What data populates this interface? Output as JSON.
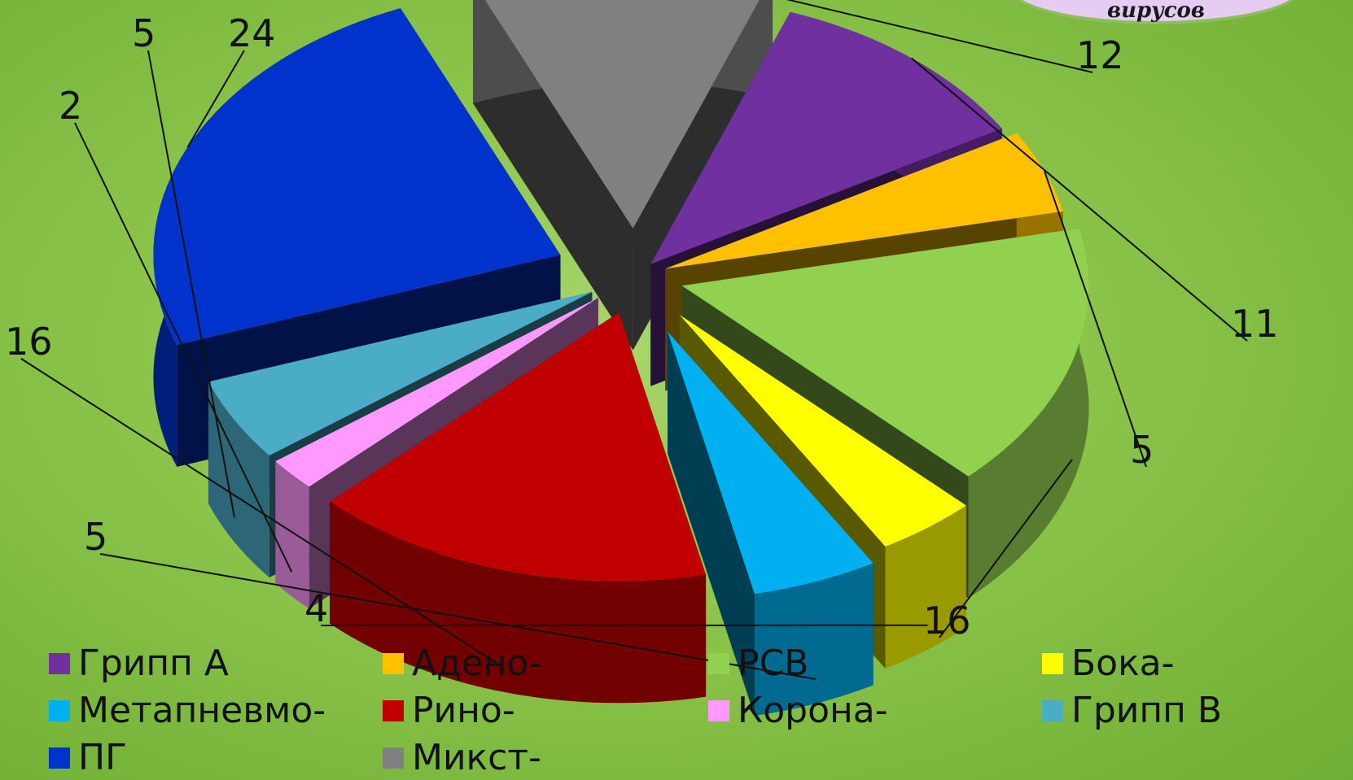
{
  "title": "вирусов",
  "chart_data": {
    "type": "pie",
    "three_d": true,
    "exploded": true,
    "legend_position": "bottom",
    "slices": [
      {
        "name": "Грипп А",
        "value": 11,
        "color": "#7030a0"
      },
      {
        "name": "Адено-",
        "value": 5,
        "color": "#ffc000"
      },
      {
        "name": "РСВ",
        "value": 16,
        "color": "#92d050"
      },
      {
        "name": "Бока-",
        "value": 4,
        "color": "#ffff00"
      },
      {
        "name": "Метапневмо-",
        "value": 5,
        "color": "#00b0f0"
      },
      {
        "name": "Рино-",
        "value": 16,
        "color": "#c00000"
      },
      {
        "name": "Корона-",
        "value": 2,
        "color": "#ff99ff"
      },
      {
        "name": "Грипп В",
        "value": 5,
        "color": "#4bacc6"
      },
      {
        "name": "ПГ",
        "value": 24,
        "color": "#0033cc"
      },
      {
        "name": "Микст-",
        "value": 12,
        "color": "#808080"
      }
    ]
  }
}
